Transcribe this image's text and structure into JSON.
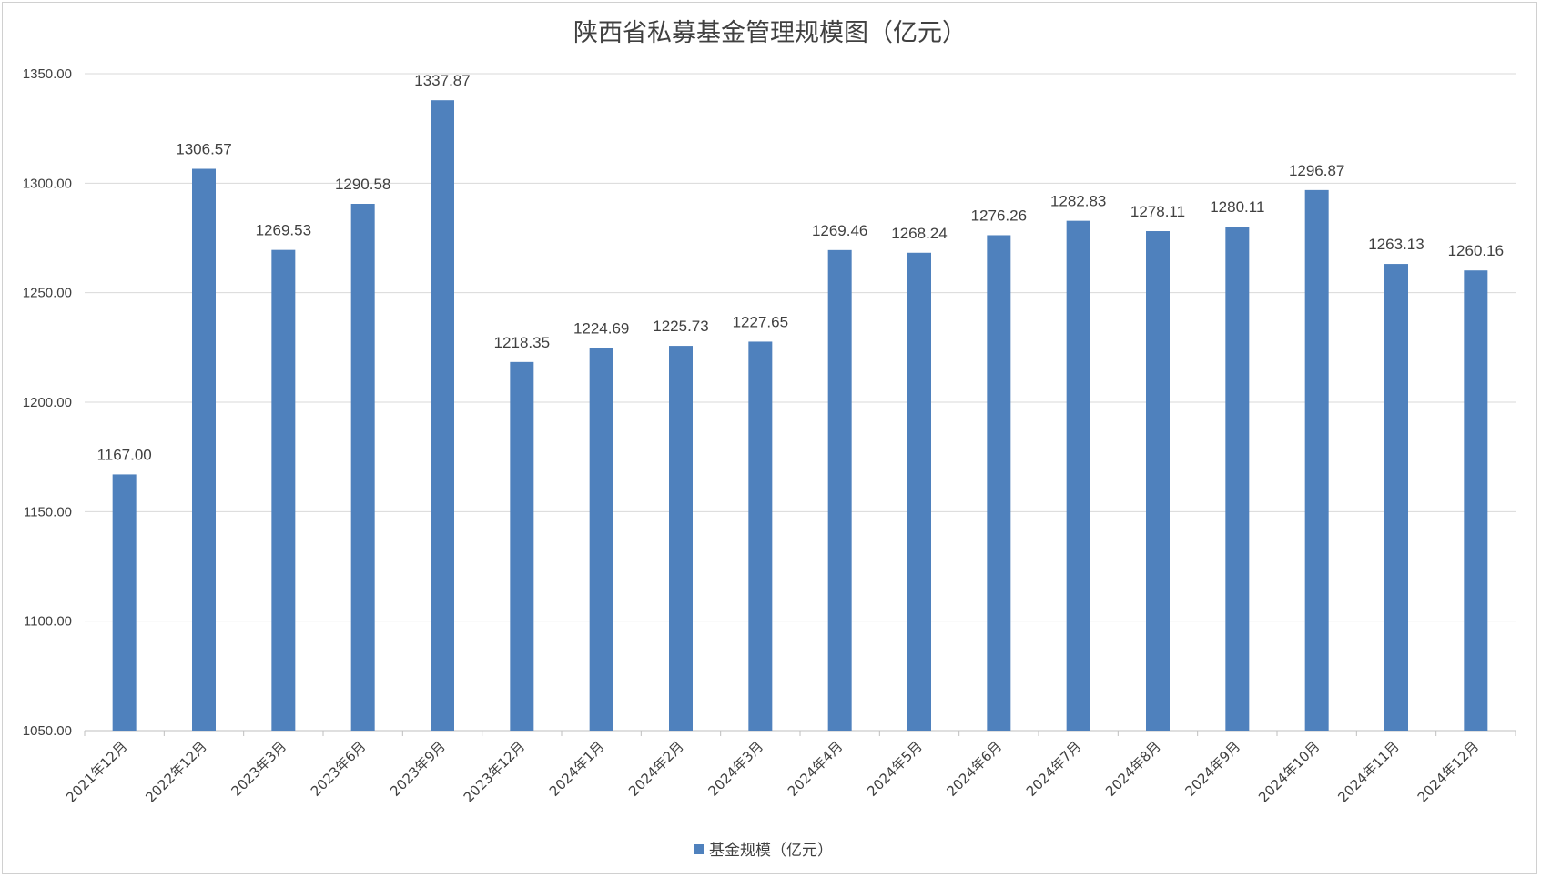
{
  "chart_data": {
    "type": "bar",
    "title": "陕西省私募基金管理规模图（亿元）",
    "xlabel": "",
    "ylabel": "",
    "categories": [
      "2021年12月",
      "2022年12月",
      "2023年3月",
      "2023年6月",
      "2023年9月",
      "2023年12月",
      "2024年1月",
      "2024年2月",
      "2024年3月",
      "2024年4月",
      "2024年5月",
      "2024年6月",
      "2024年7月",
      "2024年8月",
      "2024年9月",
      "2024年10月",
      "2024年11月",
      "2024年12月"
    ],
    "series": [
      {
        "name": "基金规模（亿元）",
        "color": "#4f81bd",
        "values": [
          1167.0,
          1306.57,
          1269.53,
          1290.58,
          1337.87,
          1218.35,
          1224.69,
          1225.73,
          1227.65,
          1269.46,
          1268.24,
          1276.26,
          1282.83,
          1278.11,
          1280.11,
          1296.87,
          1263.13,
          1260.16
        ],
        "labels": [
          "1167.00",
          "1306.57",
          "1269.53",
          "1290.58",
          "1337.87",
          "1218.35",
          "1224.69",
          "1225.73",
          "1227.65",
          "1269.46",
          "1268.24",
          "1276.26",
          "1282.83",
          "1278.11",
          "1280.11",
          "1296.87",
          "1263.13",
          "1260.16"
        ]
      }
    ],
    "ylim": [
      1050,
      1350
    ],
    "yticks": [
      "1050.00",
      "1100.00",
      "1150.00",
      "1200.00",
      "1250.00",
      "1300.00",
      "1350.00"
    ],
    "grid": true,
    "legend_position": "bottom"
  }
}
